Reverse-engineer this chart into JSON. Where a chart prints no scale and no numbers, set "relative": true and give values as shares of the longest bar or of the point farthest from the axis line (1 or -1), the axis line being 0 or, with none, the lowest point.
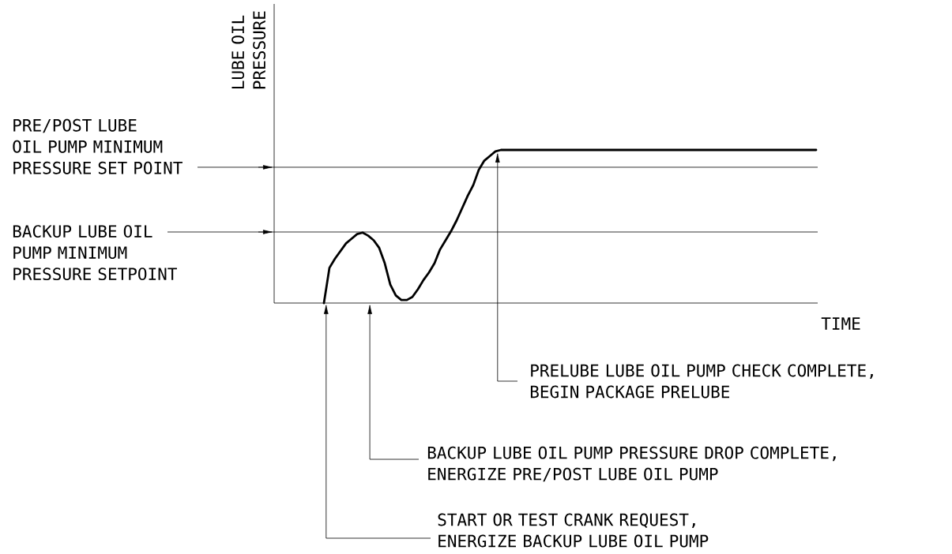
{
  "chart_data": {
    "type": "line",
    "relative": true,
    "ylabel": "LUBE OIL PRESSURE",
    "xlabel": "TIME",
    "categories": [
      null,
      null,
      null,
      null,
      null,
      null,
      null,
      null,
      null,
      null,
      null,
      null,
      null,
      null,
      null,
      null,
      null,
      null,
      null,
      null,
      null,
      null,
      null,
      null,
      null,
      null,
      null,
      null,
      null,
      null,
      null,
      null,
      null,
      null,
      null,
      null,
      null,
      null,
      null,
      null,
      null,
      null,
      null,
      null,
      null,
      null,
      null,
      null,
      null,
      null,
      null,
      null,
      null,
      null,
      null,
      null,
      null,
      null,
      null,
      null,
      null,
      null,
      null,
      null,
      null,
      null,
      null,
      null,
      null,
      null,
      null,
      null,
      null,
      null,
      null,
      null,
      null,
      null,
      null,
      null,
      null,
      null,
      null,
      null,
      null,
      null,
      null,
      null,
      null,
      null,
      null,
      null,
      null,
      null,
      null,
      null,
      null,
      null,
      null
    ],
    "series": [
      {
        "color": "#000000",
        "values": [
          null,
          null,
          null,
          null,
          null,
          null,
          null,
          null,
          null,
          0,
          0.23,
          0.29,
          0.34,
          0.39,
          0.42,
          0.45,
          0.46,
          0.44,
          0.41,
          0.36,
          0.26,
          0.12,
          0.05,
          0.02,
          0.02,
          0.04,
          0.09,
          0.15,
          0.2,
          0.26,
          0.35,
          0.41,
          0.47,
          0.54,
          0.62,
          0.7,
          0.77,
          0.87,
          0.93,
          0.96,
          0.99,
          1,
          1,
          1,
          1,
          1,
          1,
          1,
          1,
          1,
          1,
          1,
          1,
          1,
          1,
          1,
          1,
          1,
          1,
          1,
          1,
          1,
          1,
          1,
          1,
          1,
          1,
          1,
          1,
          1,
          1,
          1,
          1,
          1,
          1,
          1,
          1,
          1,
          1,
          1,
          1,
          1,
          1,
          1,
          1,
          1,
          1,
          1,
          1,
          1,
          1,
          1,
          1,
          1,
          1,
          1,
          1,
          1,
          1
        ]
      }
    ],
    "ref_lines": [
      {
        "axis": "y",
        "value": 0.887,
        "label": "PRE/POST LUBE OIL PUMP MINIMUM PRESSURE SET POINT"
      },
      {
        "axis": "y",
        "value": 0.464,
        "label": "BACKUP LUBE OIL PUMP MINIMUM PRESSURE SETPOINT"
      }
    ],
    "annotations": [
      "PRELUBE LUBE OIL PUMP CHECK COMPLETE, BEGIN PACKAGE PRELUBE",
      "BACKUP LUBE OIL PUMP PRESSURE DROP COMPLETE, ENERGIZE PRE/POST LUBE OIL PUMP",
      "START OR TEST CRANK REQUEST, ENERGIZE BACKUP LUBE OIL PUMP"
    ]
  }
}
